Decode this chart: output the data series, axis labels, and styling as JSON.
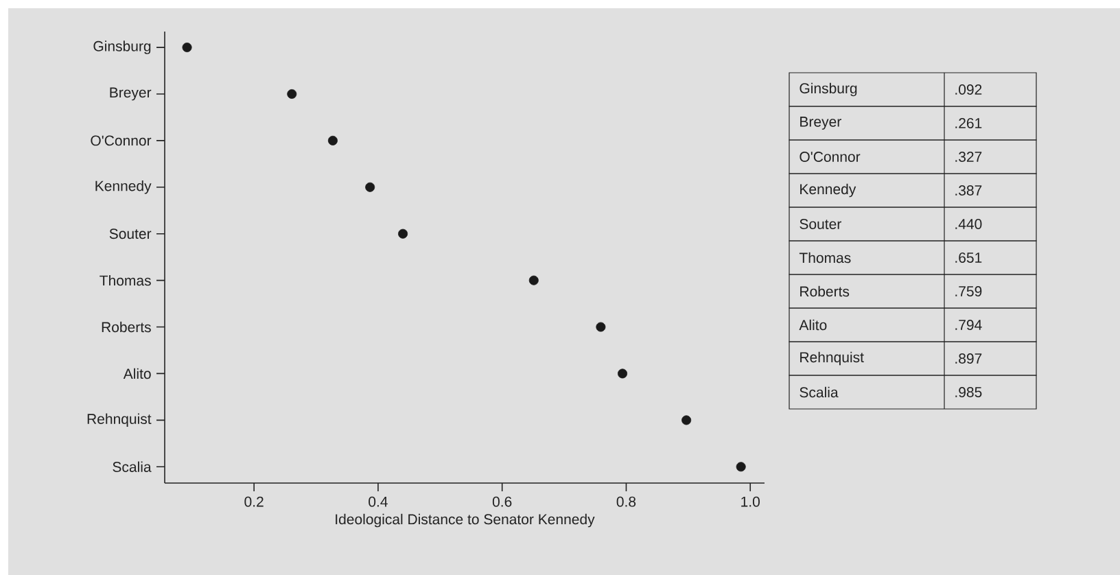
{
  "chart_data": [
    {
      "type": "scatter",
      "orientation": "horizontal",
      "categories": [
        "Ginsburg",
        "Breyer",
        "O'Connor",
        "Kennedy",
        "Souter",
        "Thomas",
        "Roberts",
        "Alito",
        "Rehnquist",
        "Scalia"
      ],
      "values": [
        0.092,
        0.261,
        0.327,
        0.387,
        0.44,
        0.651,
        0.759,
        0.794,
        0.897,
        0.985
      ],
      "color": "#1a1a1a",
      "marker": "circle",
      "xlim": [
        0.056,
        1.023
      ],
      "xticks": [
        0.2,
        0.4,
        0.6,
        0.8,
        {
          "value": 1.0,
          "label": "1.0"
        }
      ],
      "xlabel": "Ideological Distance to Senator Kennedy"
    },
    {
      "type": "other",
      "annotations": [
        "Ginsburg",
        ".092",
        "Breyer",
        ".261",
        "O'Connor",
        ".327",
        "Kennedy",
        ".387",
        "Souter",
        ".440",
        "Thomas",
        ".651",
        "Roberts",
        ".759",
        "Alito",
        ".794",
        "Rehnquist",
        ".897",
        "Scalia",
        ".985"
      ]
    }
  ]
}
